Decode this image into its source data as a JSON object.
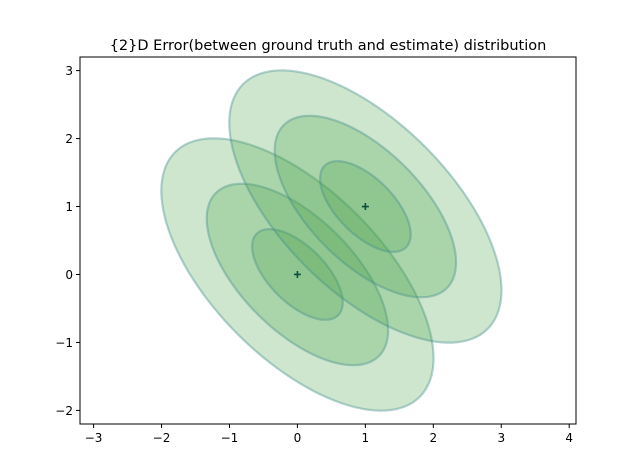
{
  "chart_data": {
    "type": "scatter",
    "title": "{2}D Error(between ground truth and estimate) distribution",
    "xlabel": "",
    "ylabel": "",
    "xlim": [
      -3.2,
      4.1
    ],
    "ylim": [
      -2.2,
      3.2
    ],
    "xticks": [
      -3,
      -2,
      -1,
      0,
      1,
      2,
      3,
      4
    ],
    "yticks": [
      -2,
      -1,
      0,
      1,
      2,
      3
    ],
    "grid": false,
    "legend": "none",
    "colors": {
      "fill": "#4aa24a",
      "edge": "#3f8c8c",
      "marker": "#0b4f3c"
    },
    "series": [
      {
        "center": [
          0,
          0
        ],
        "angle_deg": -45,
        "ellipses": [
          {
            "sigma": 1,
            "a": 0.848,
            "b": 0.414
          },
          {
            "sigma": 2,
            "a": 1.697,
            "b": 0.828
          },
          {
            "sigma": 3,
            "a": 2.546,
            "b": 1.243
          }
        ]
      },
      {
        "center": [
          1,
          1
        ],
        "angle_deg": -45,
        "ellipses": [
          {
            "sigma": 1,
            "a": 0.848,
            "b": 0.414
          },
          {
            "sigma": 2,
            "a": 1.697,
            "b": 0.828
          },
          {
            "sigma": 3,
            "a": 2.546,
            "b": 1.243
          }
        ]
      }
    ]
  }
}
